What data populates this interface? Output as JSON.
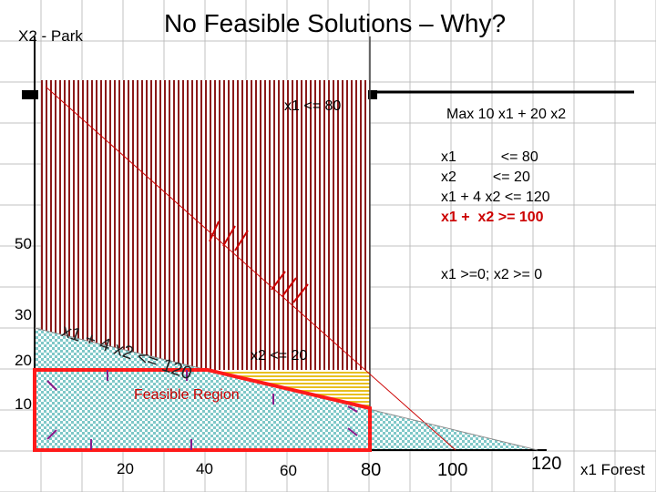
{
  "title": "No Feasible Solutions – Why?",
  "y_axis_label": "X2 - Park",
  "x_axis_label": "x1 Forest",
  "y_ticks": [
    "50",
    "30",
    "20",
    "10"
  ],
  "x_ticks": [
    "20",
    "40",
    "60",
    "80",
    "100",
    "120"
  ],
  "objective": "Max 10 x1 + 20 x2",
  "constraints": [
    "x1           <= 80",
    "x2         <= 20",
    "x1 + 4 x2 <= 120",
    "x1 +  x2 >= 100"
  ],
  "nonnegativity": "x1 >=0; x2 >= 0",
  "line_labels": {
    "x1_le_80": "x1 <= 80",
    "x2_le_20": "x2 <= 20",
    "x1_4x2_le_120": "x1 + 4 x2 <= 120"
  },
  "region_label": "Feasible Region",
  "colors": {
    "region_outline": "#ff1a1a",
    "x1_le_80_hatch": "#8b1a1a",
    "x2_band_hatch": "#e8c020",
    "check_fill": "#7fc8c8",
    "violet_arrows": "#8a1a8a",
    "constraint4": "#cc0000"
  },
  "chart_data": {
    "type": "diagram",
    "x_range": [
      0,
      120
    ],
    "y_range": [
      0,
      50
    ],
    "lines": [
      {
        "label": "x1 <= 80",
        "x1": 80
      },
      {
        "label": "x2 <= 20",
        "x2": 20
      },
      {
        "label": "x1 + 4 x2 <= 120",
        "points": [
          [
            0,
            30
          ],
          [
            120,
            0
          ]
        ]
      },
      {
        "label": "x1 + x2 >= 100",
        "points": [
          [
            0,
            100
          ],
          [
            100,
            0
          ]
        ]
      }
    ],
    "feasible_region": [
      [
        0,
        0
      ],
      [
        0,
        20
      ],
      [
        40,
        20
      ],
      [
        80,
        10
      ],
      [
        80,
        0
      ]
    ]
  }
}
